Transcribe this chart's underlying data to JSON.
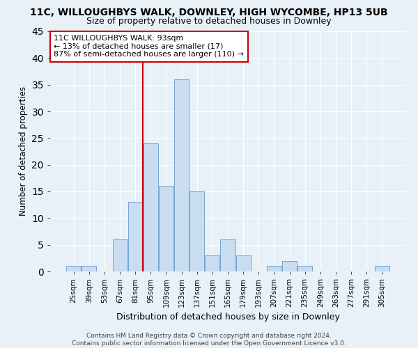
{
  "title_line1": "11C, WILLOUGHBYS WALK, DOWNLEY, HIGH WYCOMBE, HP13 5UB",
  "title_line2": "Size of property relative to detached houses in Downley",
  "xlabel": "Distribution of detached houses by size in Downley",
  "ylabel": "Number of detached properties",
  "categories": [
    "25sqm",
    "39sqm",
    "53sqm",
    "67sqm",
    "81sqm",
    "95sqm",
    "109sqm",
    "123sqm",
    "137sqm",
    "151sqm",
    "165sqm",
    "179sqm",
    "193sqm",
    "207sqm",
    "221sqm",
    "235sqm",
    "249sqm",
    "263sqm",
    "277sqm",
    "291sqm",
    "305sqm"
  ],
  "values": [
    1,
    1,
    0,
    6,
    13,
    24,
    16,
    36,
    15,
    3,
    6,
    3,
    0,
    1,
    2,
    1,
    0,
    0,
    0,
    0,
    1
  ],
  "bar_color": "#c9ddf0",
  "bar_edge_color": "#6699cc",
  "vline_color": "#cc0000",
  "annotation_text": "11C WILLOUGHBYS WALK: 93sqm\n← 13% of detached houses are smaller (17)\n87% of semi-detached houses are larger (110) →",
  "annotation_box_color": "#ffffff",
  "annotation_box_edge": "#cc0000",
  "ylim": [
    0,
    45
  ],
  "yticks": [
    0,
    5,
    10,
    15,
    20,
    25,
    30,
    35,
    40,
    45
  ],
  "footnote": "Contains HM Land Registry data © Crown copyright and database right 2024.\nContains public sector information licensed under the Open Government Licence v3.0.",
  "background_color": "#e8f0f8",
  "plot_bg_color": "#e8f0f8",
  "grid_color": "#ffffff",
  "title_fontsize": 10,
  "subtitle_fontsize": 9,
  "footnote_fontsize": 6.5,
  "bar_width": 0.95
}
